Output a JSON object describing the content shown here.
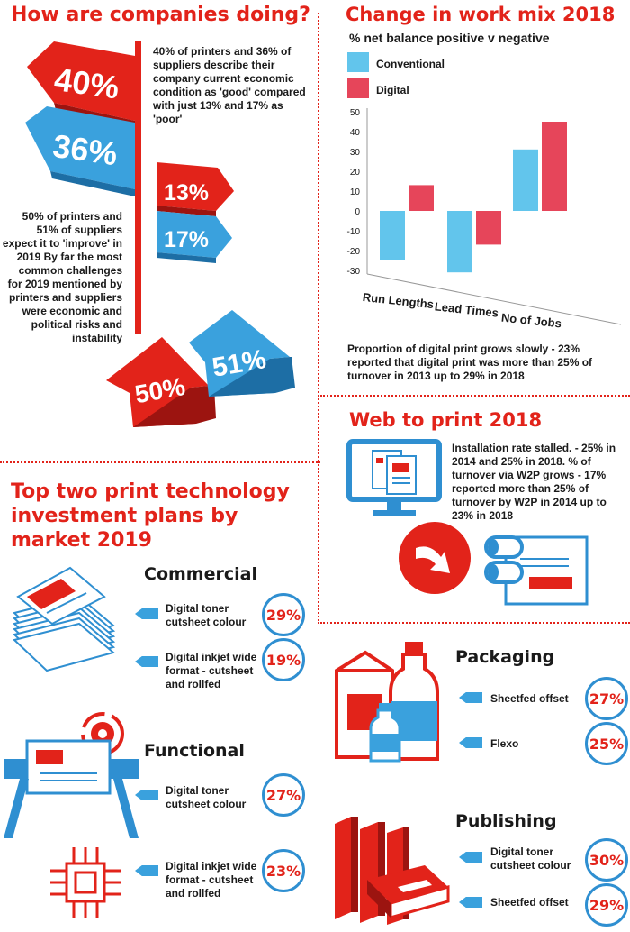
{
  "companies": {
    "title": "How are companies doing?",
    "text1": "40% of printers and 36% of suppliers describe their company current economic condition as 'good' compared with just 13% and 17% as 'poor'",
    "text2": "50% of printers and 51% of suppliers expect it to 'improve' in 2019 By far the most common challenges for 2019 mentioned by printers and suppliers were economic and political risks and instability",
    "arrows": {
      "good_printers": "40%",
      "good_suppliers": "36%",
      "poor_printers": "13%",
      "poor_suppliers": "17%",
      "improve_printers": "50%",
      "improve_suppliers": "51%"
    }
  },
  "workmix": {
    "title": "Change in work mix 2018",
    "subtitle": "% net balance positive v negative",
    "legend": [
      "Conventional",
      "Digital"
    ],
    "note": "Proportion of digital print grows slowly - 23% reported that digital print was more than 25% of turnover in 2013 up to 29% in 2018"
  },
  "chart_data": {
    "type": "bar",
    "categories": [
      "Run Lengths",
      "Lead Times",
      "No of Jobs"
    ],
    "series": [
      {
        "name": "Conventional",
        "values": [
          -25,
          -31,
          31
        ]
      },
      {
        "name": "Digital",
        "values": [
          13,
          -17,
          45
        ]
      }
    ],
    "ylim": [
      -30,
      50
    ],
    "yticks": [
      "50",
      "40",
      "30",
      "20",
      "10",
      "0",
      "-10",
      "-20",
      "-30"
    ],
    "colors": {
      "Conventional": "#62c5ec",
      "Digital": "#e6455a"
    },
    "grid": false,
    "legend_position": "top-left"
  },
  "web": {
    "title": "Web to print 2018",
    "text": "Installation rate stalled. - 25% in 2014 and 25% in 2018. % of turnover via W2P grows - 17% reported more than 25% of turnover by W2P in 2014 up to 23% in 2018"
  },
  "investment": {
    "title": "Top two print technology investment plans by market 2019",
    "markets": [
      {
        "name": "Commercial",
        "items": [
          {
            "label": "Digital toner cutsheet colour",
            "value": "29%"
          },
          {
            "label": "Digital inkjet wide format - cutsheet and rollfed",
            "value": "19%"
          }
        ]
      },
      {
        "name": "Functional",
        "items": [
          {
            "label": "Digital toner cutsheet colour",
            "value": "27%"
          },
          {
            "label": "Digital inkjet wide format - cutsheet and rollfed",
            "value": "23%"
          }
        ]
      },
      {
        "name": "Packaging",
        "items": [
          {
            "label": "Sheetfed offset",
            "value": "27%"
          },
          {
            "label": "Flexo",
            "value": "25%"
          }
        ]
      },
      {
        "name": "Publishing",
        "items": [
          {
            "label": "Digital toner cutsheet colour",
            "value": "30%"
          },
          {
            "label": "Sheetfed offset",
            "value": "29%"
          }
        ]
      }
    ]
  },
  "icons": [
    "stack-of-papers-icon",
    "wide-format-printer-icon",
    "gear-icon",
    "circuit-chip-icon",
    "computer-monitor-icon",
    "right-arrow-icon",
    "paper-roll-printer-icon",
    "milk-carton-icon",
    "bottle-icon",
    "books-icon"
  ]
}
